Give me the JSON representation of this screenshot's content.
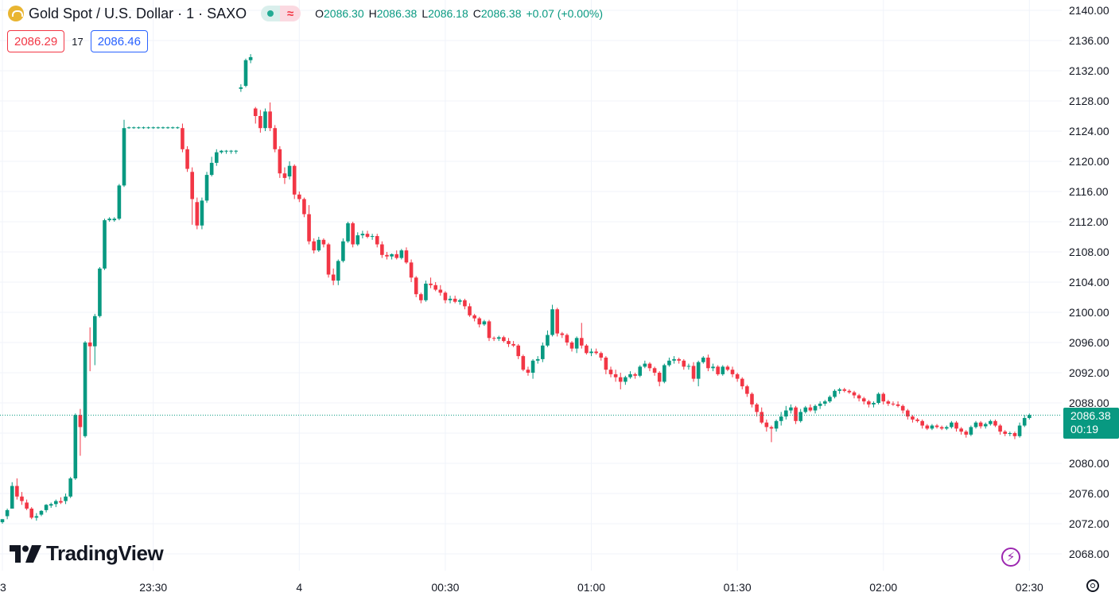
{
  "legend": {
    "symbol": "Gold Spot / U.S. Dollar · 1 · SAXO",
    "delayed_glyph": "≈",
    "open_label": "O",
    "open": "2086.30",
    "high_label": "H",
    "high": "2086.38",
    "low_label": "L",
    "low": "2086.18",
    "close_label": "C",
    "close": "2086.38",
    "change": "+0.07 (+0.00%)"
  },
  "trade": {
    "sell": "2086.29",
    "spread": "17",
    "buy": "2086.46"
  },
  "last_price": {
    "price": "2086.38",
    "countdown": "00:19"
  },
  "branding": {
    "name": "TradingView"
  },
  "colors": {
    "up": "#089981",
    "down": "#f23645",
    "grid": "#f0f3fa",
    "text": "#131722",
    "accent": "#2962ff"
  },
  "icons": {
    "symbol": "gold-coin-icon",
    "bolt": "lightning-icon",
    "settings": "settings-icon"
  },
  "chart_data": {
    "type": "candlestick",
    "interval": "1",
    "ylim": [
      2066,
      2141
    ],
    "yticks": [
      "2068.00",
      "2072.00",
      "2076.00",
      "2080.00",
      "2084.00",
      "2088.00",
      "2092.00",
      "2096.00",
      "2100.00",
      "2104.00",
      "2108.00",
      "2112.00",
      "2116.00",
      "2120.00",
      "2124.00",
      "2128.00",
      "2132.00",
      "2136.00",
      "2140.00"
    ],
    "ytick_labels": [
      "2068.00",
      "2072.00",
      "2076.00",
      "2080.00",
      "",
      "2088.00",
      "2092.00",
      "2096.00",
      "2100.00",
      "2104.00",
      "2108.00",
      "2112.00",
      "2116.00",
      "2120.00",
      "2124.00",
      "2128.00",
      "2132.00",
      "2136.00",
      "2140.00"
    ],
    "xticks": [
      {
        "label": "3",
        "min": 1379
      },
      {
        "label": "23:30",
        "min": 1410
      },
      {
        "label": "4",
        "min": 1440
      },
      {
        "label": "00:30",
        "min": 1470
      },
      {
        "label": "01:00",
        "min": 1500
      },
      {
        "label": "01:30",
        "min": 1530
      },
      {
        "label": "02:00",
        "min": 1560
      },
      {
        "label": "02:30",
        "min": 1590
      }
    ],
    "start_min": 1379,
    "candles": [
      [
        2072.2,
        2072.6,
        2072.0,
        2072.6
      ],
      [
        2073.0,
        2074.0,
        2072.6,
        2073.8
      ],
      [
        2074.0,
        2077.5,
        2074.0,
        2077.0
      ],
      [
        2077.0,
        2078.0,
        2075.2,
        2075.6
      ],
      [
        2075.6,
        2076.2,
        2074.5,
        2075.0
      ],
      [
        2074.8,
        2075.2,
        2073.8,
        2074.0
      ],
      [
        2074.0,
        2074.2,
        2072.6,
        2072.8
      ],
      [
        2072.8,
        2073.4,
        2072.4,
        2073.0
      ],
      [
        2073.2,
        2073.8,
        2073.0,
        2073.7
      ],
      [
        2073.8,
        2074.6,
        2073.5,
        2074.5
      ],
      [
        2074.4,
        2074.8,
        2074.1,
        2074.6
      ],
      [
        2074.6,
        2075.2,
        2074.2,
        2075.0
      ],
      [
        2075.0,
        2075.5,
        2074.6,
        2074.8
      ],
      [
        2075.0,
        2076.0,
        2074.6,
        2075.6
      ],
      [
        2075.6,
        2078.2,
        2075.4,
        2078.0
      ],
      [
        2078.0,
        2086.6,
        2077.8,
        2086.4
      ],
      [
        2086.4,
        2087.2,
        2081.0,
        2084.8
      ],
      [
        2083.6,
        2096.2,
        2083.4,
        2096.0
      ],
      [
        2096.0,
        2098.0,
        2092.2,
        2095.5
      ],
      [
        2095.5,
        2099.8,
        2093.0,
        2099.5
      ],
      [
        2099.5,
        2106.0,
        2099.3,
        2105.8
      ],
      [
        2105.8,
        2112.4,
        2105.6,
        2112.2
      ],
      [
        2112.2,
        2112.6,
        2112.0,
        2112.4
      ],
      [
        2112.2,
        2112.6,
        2112.0,
        2112.4
      ],
      [
        2112.4,
        2117.0,
        2112.2,
        2116.8
      ],
      [
        2116.8,
        2125.5,
        2116.6,
        2124.4
      ],
      [
        2124.4,
        2124.6,
        2124.3,
        2124.5
      ],
      [
        2124.4,
        2124.6,
        2124.3,
        2124.5
      ],
      [
        2124.4,
        2124.6,
        2124.3,
        2124.5
      ],
      [
        2124.4,
        2124.6,
        2124.3,
        2124.5
      ],
      [
        2124.4,
        2124.6,
        2124.3,
        2124.5
      ],
      [
        2124.4,
        2124.6,
        2124.3,
        2124.5
      ],
      [
        2124.4,
        2124.6,
        2124.3,
        2124.5
      ],
      [
        2124.4,
        2124.6,
        2124.3,
        2124.5
      ],
      [
        2124.4,
        2124.6,
        2124.3,
        2124.5
      ],
      [
        2124.4,
        2124.6,
        2124.3,
        2124.5
      ],
      [
        2124.4,
        2124.6,
        2124.3,
        2124.5
      ],
      [
        2124.4,
        2125.0,
        2121.2,
        2121.6
      ],
      [
        2121.6,
        2122.0,
        2118.6,
        2119.0
      ],
      [
        2118.6,
        2119.2,
        2111.6,
        2115.0
      ],
      [
        2114.6,
        2115.2,
        2111.0,
        2111.5
      ],
      [
        2111.5,
        2115.2,
        2111.0,
        2114.8
      ],
      [
        2114.8,
        2118.6,
        2114.5,
        2118.2
      ],
      [
        2118.2,
        2120.6,
        2118.0,
        2119.8
      ],
      [
        2119.8,
        2121.6,
        2119.4,
        2121.2
      ],
      [
        2121.2,
        2121.5,
        2121.0,
        2121.4
      ],
      [
        2121.3,
        2121.5,
        2121.0,
        2121.4
      ],
      [
        2121.3,
        2121.5,
        2121.0,
        2121.4
      ],
      [
        2121.3,
        2121.5,
        2121.0,
        2121.4
      ],
      [
        2129.6,
        2130.2,
        2129.2,
        2129.8
      ],
      [
        2130.0,
        2133.6,
        2129.8,
        2133.4
      ],
      [
        2133.4,
        2134.2,
        2133.0,
        2133.8
      ],
      [
        2127.0,
        2127.2,
        2125.0,
        2126.0
      ],
      [
        2126.0,
        2126.8,
        2123.8,
        2124.4
      ],
      [
        2124.4,
        2127.0,
        2124.0,
        2126.6
      ],
      [
        2126.6,
        2127.8,
        2124.0,
        2124.4
      ],
      [
        2124.4,
        2124.8,
        2121.2,
        2121.6
      ],
      [
        2121.6,
        2122.0,
        2117.8,
        2118.4
      ],
      [
        2118.4,
        2119.2,
        2117.0,
        2117.8
      ],
      [
        2118.0,
        2120.0,
        2117.6,
        2119.4
      ],
      [
        2119.4,
        2119.6,
        2115.0,
        2115.6
      ],
      [
        2115.6,
        2116.0,
        2114.6,
        2115.0
      ],
      [
        2115.0,
        2115.2,
        2112.6,
        2113.0
      ],
      [
        2113.0,
        2114.2,
        2109.0,
        2109.4
      ],
      [
        2109.4,
        2109.8,
        2107.8,
        2108.2
      ],
      [
        2108.2,
        2110.0,
        2108.0,
        2109.6
      ],
      [
        2109.6,
        2109.8,
        2108.6,
        2109.0
      ],
      [
        2109.0,
        2109.2,
        2104.6,
        2105.0
      ],
      [
        2105.0,
        2105.8,
        2103.6,
        2104.2
      ],
      [
        2104.2,
        2107.0,
        2103.6,
        2106.8
      ],
      [
        2106.8,
        2109.8,
        2106.6,
        2109.4
      ],
      [
        2109.4,
        2112.0,
        2109.2,
        2111.8
      ],
      [
        2111.8,
        2112.0,
        2108.6,
        2109.0
      ],
      [
        2109.0,
        2110.6,
        2108.8,
        2110.2
      ],
      [
        2110.2,
        2110.8,
        2109.8,
        2110.4
      ],
      [
        2110.4,
        2110.8,
        2109.8,
        2110.0
      ],
      [
        2110.0,
        2110.4,
        2109.6,
        2110.1
      ],
      [
        2110.1,
        2110.4,
        2108.6,
        2109.0
      ],
      [
        2109.0,
        2109.4,
        2107.2,
        2107.6
      ],
      [
        2107.6,
        2108.0,
        2107.0,
        2107.4
      ],
      [
        2107.4,
        2107.8,
        2107.0,
        2107.7
      ],
      [
        2107.7,
        2108.2,
        2107.0,
        2107.2
      ],
      [
        2107.2,
        2108.4,
        2107.0,
        2108.2
      ],
      [
        2108.2,
        2108.6,
        2106.4,
        2106.6
      ],
      [
        2106.6,
        2107.0,
        2104.0,
        2104.6
      ],
      [
        2104.6,
        2104.8,
        2102.0,
        2102.4
      ],
      [
        2102.4,
        2102.6,
        2101.2,
        2101.6
      ],
      [
        2101.6,
        2104.2,
        2101.4,
        2103.8
      ],
      [
        2103.8,
        2104.6,
        2103.2,
        2103.6
      ],
      [
        2103.6,
        2104.0,
        2102.8,
        2103.0
      ],
      [
        2103.0,
        2103.6,
        2102.2,
        2102.6
      ],
      [
        2102.6,
        2102.8,
        2101.2,
        2101.6
      ],
      [
        2101.6,
        2102.2,
        2101.2,
        2101.8
      ],
      [
        2101.8,
        2102.2,
        2101.2,
        2101.4
      ],
      [
        2101.4,
        2101.8,
        2101.0,
        2101.6
      ],
      [
        2101.6,
        2101.8,
        2100.4,
        2100.8
      ],
      [
        2100.8,
        2101.2,
        2099.4,
        2099.6
      ],
      [
        2099.6,
        2099.8,
        2098.8,
        2099.2
      ],
      [
        2099.2,
        2099.4,
        2098.0,
        2098.4
      ],
      [
        2098.4,
        2099.0,
        2098.2,
        2098.8
      ],
      [
        2098.8,
        2099.0,
        2096.2,
        2096.6
      ],
      [
        2096.6,
        2096.8,
        2096.2,
        2096.5
      ],
      [
        2096.5,
        2096.9,
        2096.2,
        2096.7
      ],
      [
        2096.7,
        2096.9,
        2096.0,
        2096.2
      ],
      [
        2096.2,
        2096.6,
        2095.4,
        2095.8
      ],
      [
        2095.8,
        2096.2,
        2095.4,
        2095.6
      ],
      [
        2095.6,
        2095.8,
        2093.8,
        2094.2
      ],
      [
        2094.2,
        2094.4,
        2092.2,
        2092.4
      ],
      [
        2092.4,
        2092.8,
        2091.6,
        2092.0
      ],
      [
        2092.0,
        2093.8,
        2091.2,
        2093.6
      ],
      [
        2093.6,
        2094.2,
        2093.2,
        2093.8
      ],
      [
        2093.8,
        2096.0,
        2093.4,
        2095.6
      ],
      [
        2095.6,
        2097.6,
        2095.4,
        2097.0
      ],
      [
        2097.0,
        2101.0,
        2096.8,
        2100.4
      ],
      [
        2100.4,
        2100.6,
        2096.8,
        2097.2
      ],
      [
        2097.2,
        2097.4,
        2096.6,
        2097.0
      ],
      [
        2097.0,
        2097.2,
        2095.6,
        2096.0
      ],
      [
        2096.0,
        2096.2,
        2094.8,
        2095.2
      ],
      [
        2095.2,
        2096.8,
        2094.6,
        2096.6
      ],
      [
        2096.6,
        2098.6,
        2095.2,
        2095.6
      ],
      [
        2095.6,
        2095.8,
        2094.4,
        2094.6
      ],
      [
        2094.6,
        2095.2,
        2094.2,
        2094.8
      ],
      [
        2094.8,
        2095.2,
        2094.4,
        2094.6
      ],
      [
        2094.6,
        2094.8,
        2093.6,
        2094.0
      ],
      [
        2094.0,
        2094.2,
        2091.8,
        2092.4
      ],
      [
        2092.4,
        2092.8,
        2091.4,
        2091.8
      ],
      [
        2091.8,
        2092.4,
        2090.8,
        2091.4
      ],
      [
        2091.4,
        2092.0,
        2089.8,
        2090.8
      ],
      [
        2090.8,
        2091.6,
        2090.4,
        2091.4
      ],
      [
        2091.4,
        2092.2,
        2091.2,
        2091.8
      ],
      [
        2091.8,
        2092.0,
        2091.2,
        2091.6
      ],
      [
        2091.6,
        2093.0,
        2091.4,
        2092.8
      ],
      [
        2092.8,
        2093.6,
        2092.6,
        2093.2
      ],
      [
        2093.2,
        2093.4,
        2092.2,
        2092.6
      ],
      [
        2092.6,
        2092.8,
        2091.6,
        2092.0
      ],
      [
        2092.0,
        2092.2,
        2090.2,
        2090.8
      ],
      [
        2090.8,
        2093.2,
        2090.6,
        2093.0
      ],
      [
        2093.0,
        2094.0,
        2092.8,
        2093.6
      ],
      [
        2093.6,
        2094.2,
        2093.2,
        2093.8
      ],
      [
        2093.8,
        2094.0,
        2093.2,
        2093.6
      ],
      [
        2093.6,
        2093.8,
        2092.4,
        2092.8
      ],
      [
        2092.8,
        2093.2,
        2092.4,
        2092.9
      ],
      [
        2092.9,
        2093.4,
        2090.8,
        2091.2
      ],
      [
        2091.2,
        2093.6,
        2090.2,
        2093.4
      ],
      [
        2093.4,
        2094.2,
        2093.2,
        2094.0
      ],
      [
        2094.0,
        2094.4,
        2092.2,
        2092.6
      ],
      [
        2092.6,
        2093.2,
        2092.2,
        2092.8
      ],
      [
        2092.8,
        2093.0,
        2091.6,
        2091.8
      ],
      [
        2091.8,
        2093.0,
        2091.6,
        2092.8
      ],
      [
        2092.8,
        2093.0,
        2092.2,
        2092.4
      ],
      [
        2092.4,
        2092.8,
        2091.4,
        2091.8
      ],
      [
        2091.8,
        2092.0,
        2090.8,
        2091.2
      ],
      [
        2091.2,
        2091.4,
        2089.8,
        2090.2
      ],
      [
        2090.2,
        2090.4,
        2088.8,
        2089.2
      ],
      [
        2089.2,
        2089.4,
        2087.4,
        2087.8
      ],
      [
        2087.8,
        2088.0,
        2086.2,
        2086.8
      ],
      [
        2086.8,
        2087.4,
        2085.2,
        2085.4
      ],
      [
        2085.4,
        2085.8,
        2084.2,
        2084.8
      ],
      [
        2084.8,
        2085.0,
        2082.8,
        2084.6
      ],
      [
        2084.6,
        2085.8,
        2084.2,
        2085.6
      ],
      [
        2085.6,
        2086.8,
        2085.0,
        2086.2
      ],
      [
        2086.2,
        2087.6,
        2085.8,
        2087.0
      ],
      [
        2087.0,
        2087.8,
        2086.6,
        2087.4
      ],
      [
        2087.4,
        2087.6,
        2085.2,
        2085.6
      ],
      [
        2085.6,
        2087.2,
        2085.4,
        2086.8
      ],
      [
        2086.8,
        2087.6,
        2086.6,
        2087.4
      ],
      [
        2087.4,
        2087.8,
        2086.8,
        2087.0
      ],
      [
        2087.0,
        2087.8,
        2086.6,
        2087.6
      ],
      [
        2087.6,
        2088.2,
        2087.2,
        2087.9
      ],
      [
        2087.9,
        2088.4,
        2087.6,
        2088.2
      ],
      [
        2088.2,
        2089.0,
        2088.0,
        2088.8
      ],
      [
        2088.8,
        2089.8,
        2088.6,
        2089.6
      ],
      [
        2089.6,
        2090.0,
        2089.2,
        2089.8
      ],
      [
        2089.8,
        2090.0,
        2089.4,
        2089.6
      ],
      [
        2089.6,
        2089.8,
        2089.2,
        2089.4
      ],
      [
        2089.4,
        2089.6,
        2088.6,
        2089.0
      ],
      [
        2089.0,
        2089.2,
        2088.2,
        2088.6
      ],
      [
        2088.6,
        2088.8,
        2087.8,
        2088.2
      ],
      [
        2088.2,
        2088.4,
        2087.4,
        2087.8
      ],
      [
        2087.8,
        2088.2,
        2087.4,
        2088.0
      ],
      [
        2088.0,
        2089.4,
        2087.8,
        2089.2
      ],
      [
        2089.2,
        2089.4,
        2087.8,
        2088.2
      ],
      [
        2088.2,
        2088.4,
        2087.6,
        2087.9
      ],
      [
        2087.9,
        2088.2,
        2087.6,
        2087.8
      ],
      [
        2087.8,
        2088.2,
        2087.4,
        2087.6
      ],
      [
        2087.6,
        2087.8,
        2086.6,
        2087.0
      ],
      [
        2087.0,
        2087.2,
        2085.8,
        2086.2
      ],
      [
        2086.2,
        2086.4,
        2085.4,
        2085.8
      ],
      [
        2085.8,
        2086.0,
        2085.4,
        2085.6
      ],
      [
        2085.6,
        2085.8,
        2084.6,
        2085.0
      ],
      [
        2085.0,
        2085.2,
        2084.4,
        2084.6
      ],
      [
        2084.6,
        2085.2,
        2084.4,
        2085.0
      ],
      [
        2085.0,
        2085.2,
        2084.6,
        2084.8
      ],
      [
        2084.8,
        2085.0,
        2084.4,
        2084.6
      ],
      [
        2084.6,
        2085.0,
        2084.4,
        2084.8
      ],
      [
        2084.8,
        2085.6,
        2084.6,
        2085.4
      ],
      [
        2085.4,
        2085.6,
        2084.2,
        2084.6
      ],
      [
        2084.6,
        2084.8,
        2083.8,
        2084.2
      ],
      [
        2084.2,
        2084.4,
        2083.4,
        2083.8
      ],
      [
        2083.8,
        2085.0,
        2083.6,
        2084.8
      ],
      [
        2084.8,
        2085.6,
        2084.6,
        2085.4
      ],
      [
        2085.4,
        2085.6,
        2084.6,
        2084.9
      ],
      [
        2084.9,
        2085.4,
        2084.6,
        2085.2
      ],
      [
        2085.2,
        2085.8,
        2085.0,
        2085.6
      ],
      [
        2085.6,
        2085.8,
        2084.8,
        2085.0
      ],
      [
        2085.0,
        2085.2,
        2083.8,
        2084.2
      ],
      [
        2084.2,
        2084.4,
        2083.6,
        2083.9
      ],
      [
        2083.9,
        2084.2,
        2083.6,
        2084.0
      ],
      [
        2084.0,
        2084.2,
        2083.2,
        2083.6
      ],
      [
        2083.6,
        2085.4,
        2083.4,
        2085.0
      ],
      [
        2085.0,
        2086.4,
        2084.8,
        2086.0
      ],
      [
        2086.0,
        2086.6,
        2085.8,
        2086.4
      ]
    ],
    "last_price": 2086.38,
    "grid": true,
    "legend": "top-left"
  }
}
